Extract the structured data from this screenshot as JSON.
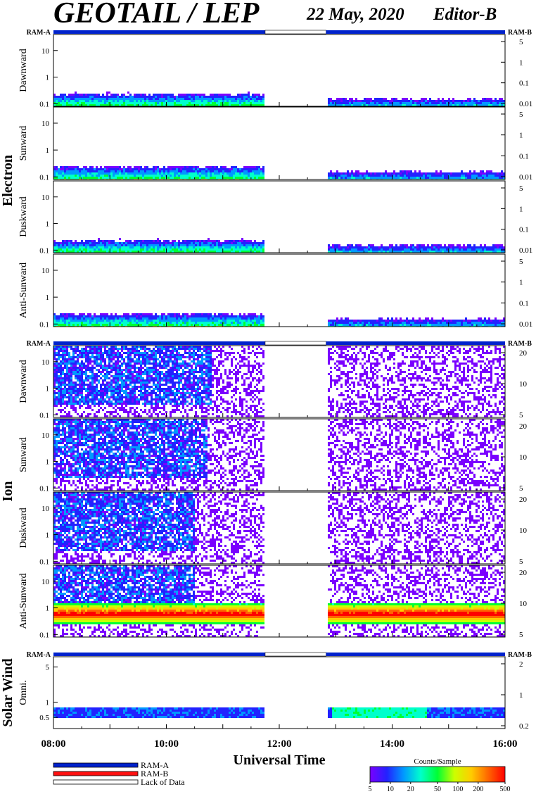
{
  "header": {
    "title": "GEOTAIL / LEP",
    "date": "22 May, 2020",
    "editor": "Editor-B"
  },
  "groups": [
    {
      "label": "Electron"
    },
    {
      "label": "Ion"
    },
    {
      "label": "Solar Wind"
    }
  ],
  "mode_labels": {
    "left": "RAM-A",
    "right": "RAM-B"
  },
  "legend": {
    "items": [
      {
        "label": "RAM-A",
        "color": "#0022cc"
      },
      {
        "label": "RAM-B",
        "color": "#ff1010"
      },
      {
        "label": "Lack of Data",
        "color": "#ffffff"
      }
    ]
  },
  "colorbar": {
    "title": "Counts/Sample",
    "ticks": [
      "5",
      "10",
      "20",
      "50",
      "100",
      "200",
      "500"
    ],
    "colors": [
      "#7a00ff",
      "#2222ff",
      "#0099ff",
      "#00ffcc",
      "#00ff33",
      "#ccff00",
      "#ffcc00",
      "#ff6600",
      "#ff0000"
    ]
  },
  "chart_data": {
    "type": "heatmap",
    "xlabel": "Universal Time",
    "x_ticks": [
      "08:00",
      "10:00",
      "12:00",
      "14:00",
      "16:00"
    ],
    "x_range_hours": [
      8,
      16
    ],
    "data_gap_hours": [
      11.75,
      12.83
    ],
    "mode_intervals": [
      {
        "mode": "RAM-A",
        "start": 8.0,
        "end": 11.75
      },
      {
        "mode": "Lack of Data",
        "start": 11.75,
        "end": 12.83
      },
      {
        "mode": "RAM-A",
        "start": 12.83,
        "end": 16.0
      }
    ],
    "panels": [
      {
        "group": "Electron",
        "label": "Dawnward",
        "y_ticks_left": [
          "10",
          "1",
          "0.1"
        ],
        "y_ticks_right": [
          "5",
          "1",
          "0.1",
          "0.01"
        ],
        "ylim": [
          0.08,
          40
        ],
        "signal": "electron"
      },
      {
        "group": "Electron",
        "label": "Sunward",
        "y_ticks_left": [
          "10",
          "1",
          "0.1"
        ],
        "y_ticks_right": [
          "5",
          "1",
          "0.1",
          "0.01"
        ],
        "ylim": [
          0.08,
          40
        ],
        "signal": "electron"
      },
      {
        "group": "Electron",
        "label": "Duskward",
        "y_ticks_left": [
          "10",
          "1",
          "0.1"
        ],
        "y_ticks_right": [
          "5",
          "1",
          "0.1",
          "0.01"
        ],
        "ylim": [
          0.08,
          40
        ],
        "signal": "electron"
      },
      {
        "group": "Electron",
        "label": "Anti-Sunward",
        "y_ticks_left": [
          "10",
          "1",
          "0.1"
        ],
        "y_ticks_right": [
          "5",
          "1",
          "0.1",
          "0.01"
        ],
        "ylim": [
          0.08,
          40
        ],
        "signal": "electron"
      },
      {
        "group": "Ion",
        "label": "Dawnward",
        "y_ticks_left": [
          "10",
          "1",
          "0.1"
        ],
        "y_ticks_right": [
          "20",
          "10",
          "5"
        ],
        "ylim": [
          0.08,
          40
        ],
        "signal": "ion_dawn"
      },
      {
        "group": "Ion",
        "label": "Sunward",
        "y_ticks_left": [
          "10",
          "1",
          "0.1"
        ],
        "y_ticks_right": [
          "20",
          "10",
          "5"
        ],
        "ylim": [
          0.08,
          40
        ],
        "signal": "ion_sun"
      },
      {
        "group": "Ion",
        "label": "Duskward",
        "y_ticks_left": [
          "10",
          "1",
          "0.1"
        ],
        "y_ticks_right": [
          "20",
          "10",
          "5"
        ],
        "ylim": [
          0.08,
          40
        ],
        "signal": "ion_dusk"
      },
      {
        "group": "Ion",
        "label": "Anti-Sunward",
        "y_ticks_left": [
          "10",
          "1",
          "0.1"
        ],
        "y_ticks_right": [
          "20",
          "10",
          "5"
        ],
        "ylim": [
          0.08,
          40
        ],
        "signal": "ion_anti"
      },
      {
        "group": "Solar Wind",
        "label": "Omni.",
        "y_ticks_left": [
          "5",
          "1",
          "0.5"
        ],
        "y_ticks_right": [
          "2",
          "1",
          "0.2"
        ],
        "ylim": [
          0.3,
          8
        ],
        "signal": "sw"
      }
    ]
  }
}
